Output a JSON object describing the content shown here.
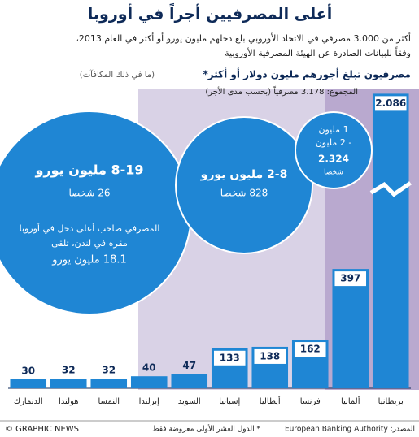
{
  "title": "أعلى المصرفيين أجراً في أوروبا",
  "subtitle": [
    "أكثر من 3.000 مصرفي في الاتحاد الأوروبي بلغ دخلهم مليون يورو أو أكثر في العام 2013،",
    "وفقاً للبيانات الصادرة عن الهيئة المصرفية الأوروبية"
  ],
  "heading": "مصرفيون تبلغ أجورهم مليون دولار أو أكثر*",
  "heading_note": "(ما في ذلك المكافآت)",
  "total": "المجموع: 3.178 مصرفياً (بحسب مدى الأجر)",
  "circles": [
    {
      "range": "8-19 مليون يورو",
      "count": "26 شخصا",
      "note": [
        "المصرفي صاحب أعلى دخل في أوروبا",
        "مقره في لندن، تلقى",
        "18.1 مليون يورو"
      ]
    },
    {
      "range": "2-8 مليون يورو",
      "count": "828 شخصا"
    },
    {
      "range": [
        "1 مليون",
        "- 2 مليون"
      ],
      "count": [
        "2.324",
        "شخصا"
      ]
    }
  ],
  "chart_data": {
    "type": "bar",
    "categories": [
      "الدنمارك",
      "هولندا",
      "النمسا",
      "إيرلندا",
      "السويد",
      "إسبانيا",
      "أيطاليا",
      "فرنسا",
      "ألمانيا",
      "بريطانيا"
    ],
    "values": [
      30,
      32,
      32,
      40,
      47,
      133,
      138,
      162,
      397,
      2086
    ],
    "value_labels": [
      "30",
      "32",
      "32",
      "40",
      "47",
      "133",
      "138",
      "162",
      "397",
      "2.086"
    ],
    "color": "#1f86d4",
    "ylim": [
      0,
      2100
    ],
    "ybreak": [
      440,
      2000
    ]
  },
  "footer": {
    "credit": "© GRAPHIC NEWS",
    "note": "* الدول العشر الأولى معروضة فقط",
    "source": "المصدر: European Banking Authority"
  }
}
